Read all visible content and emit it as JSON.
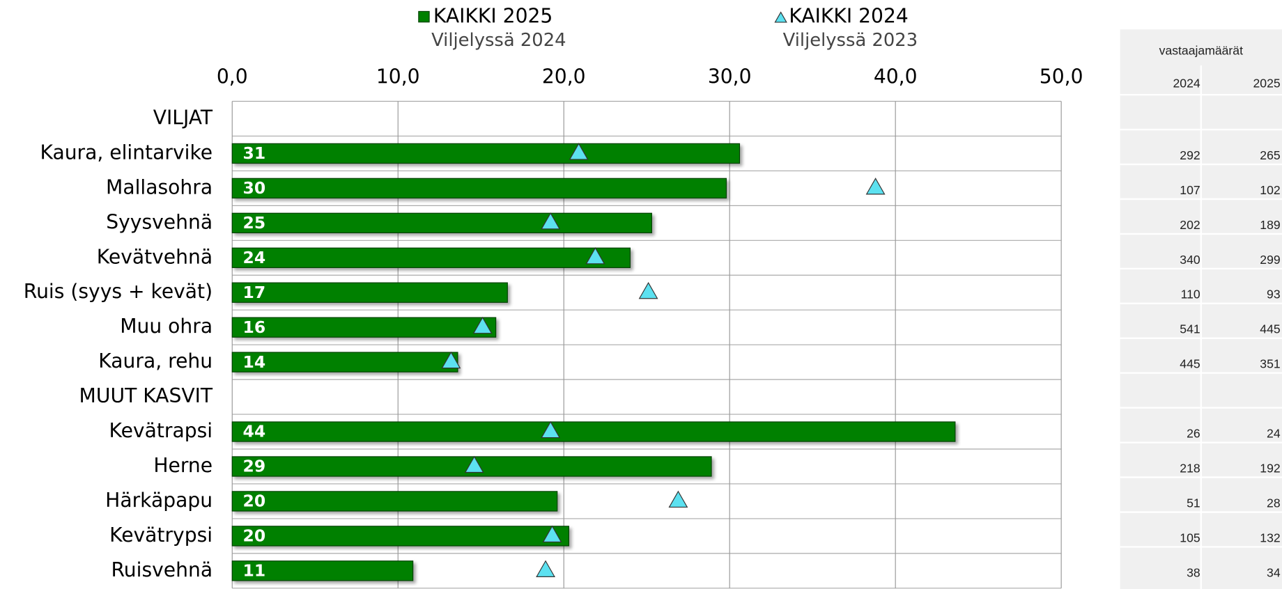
{
  "chart_data": {
    "type": "bar",
    "categories": [
      "VILJAT",
      "Kaura, elintarvike",
      "Mallasohra",
      "Syysvehnä",
      "Kevätvehnä",
      "Ruis (syys + kevät)",
      "Muu ohra",
      "Kaura, rehu",
      "MUUT KASVIT",
      "Kevätrapsi",
      "Herne",
      "Härkäpapu",
      "Kevätrypsi",
      "Ruisvehnä"
    ],
    "series": [
      {
        "name": "KAIKKI 2025",
        "subtitle": "Viljelyssä 2024",
        "color": "#008000",
        "marker": "bar",
        "values": [
          null,
          30.6,
          29.8,
          25.3,
          24.0,
          16.6,
          15.9,
          13.6,
          null,
          43.6,
          28.9,
          19.6,
          20.3,
          10.9
        ],
        "value_labels": [
          null,
          "31",
          "30",
          "25",
          "24",
          "17",
          "16",
          "14",
          null,
          "44",
          "29",
          "20",
          "20",
          "11"
        ]
      },
      {
        "name": "KAIKKI 2024",
        "subtitle": "Viljelyssä 2023",
        "color": "#5ce1f0",
        "marker": "triangle",
        "values": [
          null,
          20.9,
          38.8,
          19.2,
          21.9,
          25.1,
          15.1,
          13.2,
          null,
          19.2,
          14.6,
          26.9,
          19.3,
          18.9
        ]
      }
    ],
    "xlim": [
      0,
      50
    ],
    "xticks": [
      {
        "value": 0,
        "label": "0,0"
      },
      {
        "value": 10,
        "label": "10,0"
      },
      {
        "value": 20,
        "label": "20,0"
      },
      {
        "value": 30,
        "label": "30,0"
      },
      {
        "value": 40,
        "label": "40,0"
      },
      {
        "value": 50,
        "label": "50,0"
      }
    ],
    "grid": true
  },
  "respondent_table": {
    "title": "vastaajamäärät",
    "columns": [
      "2024",
      "2025"
    ],
    "rows": [
      [
        null,
        null
      ],
      [
        "292",
        "265"
      ],
      [
        "107",
        "102"
      ],
      [
        "202",
        "189"
      ],
      [
        "340",
        "299"
      ],
      [
        "110",
        "93"
      ],
      [
        "541",
        "445"
      ],
      [
        "445",
        "351"
      ],
      [
        null,
        null
      ],
      [
        "26",
        "24"
      ],
      [
        "218",
        "192"
      ],
      [
        "51",
        "28"
      ],
      [
        "105",
        "132"
      ],
      [
        "38",
        "34"
      ]
    ]
  }
}
